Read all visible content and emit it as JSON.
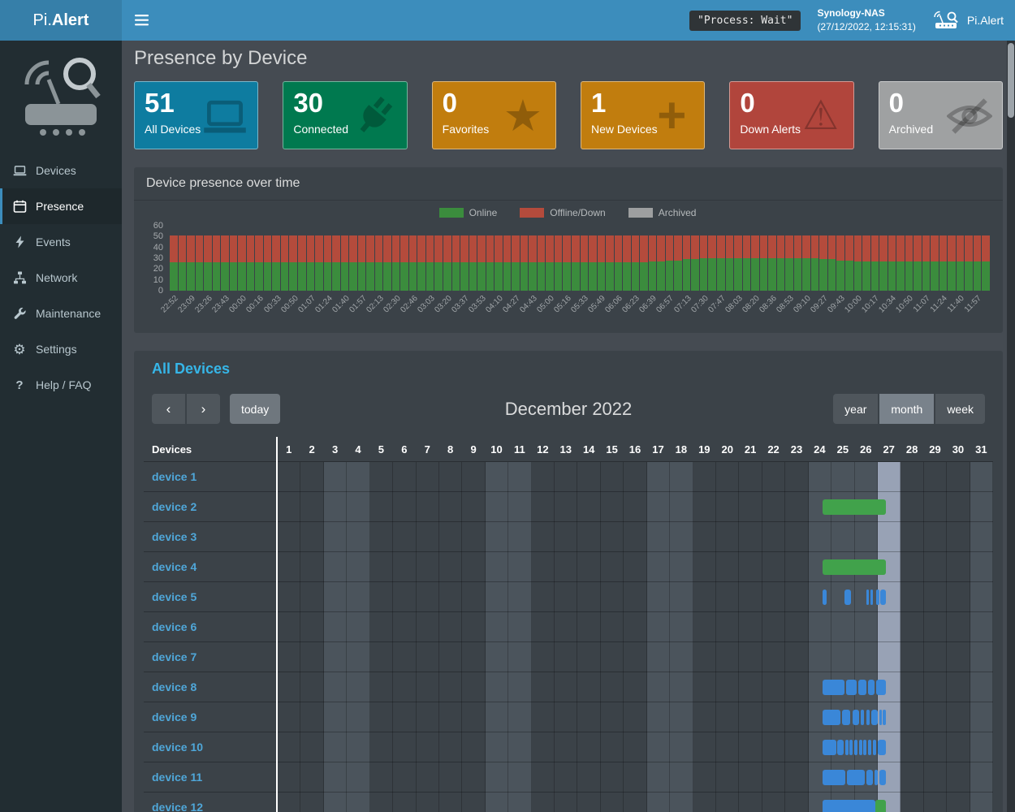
{
  "header": {
    "brand": {
      "light": "Pi.",
      "bold": "Alert"
    },
    "process_badge": "\"Process: Wait\"",
    "host": {
      "name": "Synology-NAS",
      "datetime": "(27/12/2022, 12:15:31)"
    },
    "user": {
      "label": "Pi.Alert",
      "icon": "router-icon"
    }
  },
  "sidebar": {
    "logo_icon": "pialert-logo-icon",
    "items": [
      {
        "label": "Devices",
        "icon": "laptop-icon",
        "active": false
      },
      {
        "label": "Presence",
        "icon": "calendar-icon",
        "active": true
      },
      {
        "label": "Events",
        "icon": "bolt-icon",
        "active": false
      },
      {
        "label": "Network",
        "icon": "network-icon",
        "active": false
      },
      {
        "label": "Maintenance",
        "icon": "wrench-icon",
        "active": false
      },
      {
        "label": "Settings",
        "icon": "gear-icon",
        "active": false
      },
      {
        "label": "Help / FAQ",
        "icon": "question-icon",
        "active": false
      }
    ]
  },
  "page": {
    "title": "Presence by Device"
  },
  "summary_cards": [
    {
      "value": "51",
      "label": "All Devices",
      "color": "#0e7ca0",
      "icon": "laptop-icon"
    },
    {
      "value": "30",
      "label": "Connected",
      "color": "#00794f",
      "icon": "plug-icon"
    },
    {
      "value": "0",
      "label": "Favorites",
      "color": "#c17d0e",
      "icon": "star-icon"
    },
    {
      "value": "1",
      "label": "New Devices",
      "color": "#c17d0e",
      "icon": "plus-icon"
    },
    {
      "value": "0",
      "label": "Down Alerts",
      "color": "#b1453c",
      "icon": "warning-icon"
    },
    {
      "value": "0",
      "label": "Archived",
      "color": "#9fa1a2",
      "icon": "eye-slash-icon"
    }
  ],
  "chart_panel": {
    "title": "Device presence over time"
  },
  "chart_data": {
    "type": "bar",
    "stacked": true,
    "title": "Device presence over time",
    "legend_position": "top",
    "grid": false,
    "ylim": [
      0,
      60
    ],
    "yticks": [
      0,
      10,
      20,
      30,
      40,
      50,
      60
    ],
    "x": [
      "22:52",
      "23:09",
      "23:26",
      "23:43",
      "00:00",
      "00:16",
      "00:33",
      "00:50",
      "01:07",
      "01:24",
      "01:40",
      "01:57",
      "02:13",
      "02:30",
      "02:46",
      "03:03",
      "03:20",
      "03:37",
      "03:53",
      "04:10",
      "04:27",
      "04:43",
      "05:00",
      "05:16",
      "05:33",
      "05:49",
      "06:06",
      "06:23",
      "06:39",
      "06:57",
      "07:13",
      "07:30",
      "07:47",
      "08:03",
      "08:20",
      "08:36",
      "08:53",
      "09:10",
      "09:27",
      "09:43",
      "10:00",
      "10:17",
      "10:34",
      "10:50",
      "11:07",
      "11:24",
      "11:40",
      "11:57"
    ],
    "bars_per_tick": 2,
    "series": [
      {
        "name": "Online",
        "color": "#3b8c3d",
        "values": [
          26,
          26,
          26,
          26,
          26,
          26,
          26,
          26,
          26,
          26,
          26,
          26,
          26,
          26,
          26,
          26,
          26,
          26,
          26,
          26,
          26,
          26,
          26,
          26,
          26,
          26,
          26,
          26,
          26,
          26,
          26,
          26,
          26,
          26,
          26,
          26,
          26,
          26,
          26,
          26,
          26,
          26,
          26,
          26,
          26,
          26,
          26,
          26,
          26,
          26,
          26,
          26,
          26,
          26,
          26,
          26,
          27,
          27,
          28,
          28,
          29,
          29,
          30,
          30,
          30,
          30,
          30,
          30,
          30,
          30,
          30,
          30,
          30,
          30,
          30,
          30,
          29,
          29,
          28,
          28,
          27,
          27,
          27,
          27,
          27,
          27,
          27,
          27,
          27,
          27,
          27,
          27,
          27,
          27,
          27,
          27
        ]
      },
      {
        "name": "Offline/Down",
        "color": "#b44b3c",
        "values": [
          25,
          25,
          25,
          25,
          25,
          25,
          25,
          25,
          25,
          25,
          25,
          25,
          25,
          25,
          25,
          25,
          25,
          25,
          25,
          25,
          25,
          25,
          25,
          25,
          25,
          25,
          25,
          25,
          25,
          25,
          25,
          25,
          25,
          25,
          25,
          25,
          25,
          25,
          25,
          25,
          25,
          25,
          25,
          25,
          25,
          25,
          25,
          25,
          25,
          25,
          25,
          25,
          25,
          25,
          25,
          25,
          24,
          24,
          23,
          23,
          22,
          22,
          21,
          21,
          21,
          21,
          21,
          21,
          21,
          21,
          21,
          21,
          21,
          21,
          21,
          21,
          22,
          22,
          23,
          23,
          24,
          24,
          24,
          24,
          24,
          24,
          24,
          24,
          24,
          24,
          24,
          24,
          24,
          24,
          24,
          24
        ]
      },
      {
        "name": "Archived",
        "color": "#9d9fa0",
        "values": [
          0,
          0,
          0,
          0,
          0,
          0,
          0,
          0,
          0,
          0,
          0,
          0,
          0,
          0,
          0,
          0,
          0,
          0,
          0,
          0,
          0,
          0,
          0,
          0,
          0,
          0,
          0,
          0,
          0,
          0,
          0,
          0,
          0,
          0,
          0,
          0,
          0,
          0,
          0,
          0,
          0,
          0,
          0,
          0,
          0,
          0,
          0,
          0,
          0,
          0,
          0,
          0,
          0,
          0,
          0,
          0,
          0,
          0,
          0,
          0,
          0,
          0,
          0,
          0,
          0,
          0,
          0,
          0,
          0,
          0,
          0,
          0,
          0,
          0,
          0,
          0,
          0,
          0,
          0,
          0,
          0,
          0,
          0,
          0,
          0,
          0,
          0,
          0,
          0,
          0,
          0,
          0,
          0,
          0,
          0,
          0
        ]
      }
    ]
  },
  "calendar": {
    "title": "All Devices",
    "toolbar": {
      "prev_label": "‹",
      "next_label": "›",
      "today_label": "today",
      "month_title": "December 2022",
      "views": [
        {
          "label": "year",
          "active": false
        },
        {
          "label": "month",
          "active": true
        },
        {
          "label": "week",
          "active": false
        }
      ]
    },
    "table": {
      "device_column_header": "Devices",
      "days_in_month": 31,
      "shaded_days": [
        3,
        4,
        10,
        11,
        17,
        18,
        24,
        25,
        26,
        31
      ],
      "today_day": 27,
      "bar_colors": {
        "blue": "#3a87d8",
        "green": "#41a24b"
      },
      "devices": [
        {
          "name": "device 1",
          "bars": []
        },
        {
          "name": "device 2",
          "bars": [
            {
              "start": 24.6,
              "end": 27.35,
              "color": "green"
            }
          ]
        },
        {
          "name": "device 3",
          "bars": []
        },
        {
          "name": "device 4",
          "bars": [
            {
              "start": 24.6,
              "end": 27.35,
              "color": "green"
            }
          ]
        },
        {
          "name": "device 5",
          "bars": [
            {
              "start": 24.62,
              "end": 24.8,
              "color": "blue"
            },
            {
              "start": 25.55,
              "end": 25.85,
              "color": "blue"
            },
            {
              "start": 26.52,
              "end": 26.62,
              "color": "blue"
            },
            {
              "start": 26.68,
              "end": 26.78,
              "color": "blue"
            },
            {
              "start": 26.92,
              "end": 27.08,
              "color": "blue"
            },
            {
              "start": 27.12,
              "end": 27.35,
              "color": "blue"
            }
          ]
        },
        {
          "name": "device 6",
          "bars": []
        },
        {
          "name": "device 7",
          "bars": []
        },
        {
          "name": "device 8",
          "bars": [
            {
              "start": 24.6,
              "end": 25.55,
              "color": "blue"
            },
            {
              "start": 25.62,
              "end": 26.08,
              "color": "blue"
            },
            {
              "start": 26.15,
              "end": 26.5,
              "color": "blue"
            },
            {
              "start": 26.57,
              "end": 26.85,
              "color": "blue"
            },
            {
              "start": 26.92,
              "end": 27.35,
              "color": "blue"
            }
          ]
        },
        {
          "name": "device 9",
          "bars": [
            {
              "start": 24.6,
              "end": 25.4,
              "color": "blue"
            },
            {
              "start": 25.47,
              "end": 25.82,
              "color": "blue"
            },
            {
              "start": 25.9,
              "end": 26.18,
              "color": "blue"
            },
            {
              "start": 26.25,
              "end": 26.42,
              "color": "blue"
            },
            {
              "start": 26.5,
              "end": 26.65,
              "color": "blue"
            },
            {
              "start": 26.72,
              "end": 27.0,
              "color": "blue"
            },
            {
              "start": 27.06,
              "end": 27.18,
              "color": "blue"
            },
            {
              "start": 27.23,
              "end": 27.35,
              "color": "blue"
            }
          ]
        },
        {
          "name": "device 10",
          "bars": [
            {
              "start": 24.6,
              "end": 25.2,
              "color": "blue"
            },
            {
              "start": 25.26,
              "end": 25.52,
              "color": "blue"
            },
            {
              "start": 25.58,
              "end": 25.72,
              "color": "blue"
            },
            {
              "start": 25.78,
              "end": 25.92,
              "color": "blue"
            },
            {
              "start": 25.98,
              "end": 26.12,
              "color": "blue"
            },
            {
              "start": 26.18,
              "end": 26.32,
              "color": "blue"
            },
            {
              "start": 26.38,
              "end": 26.52,
              "color": "blue"
            },
            {
              "start": 26.58,
              "end": 26.72,
              "color": "blue"
            },
            {
              "start": 26.78,
              "end": 26.95,
              "color": "blue"
            },
            {
              "start": 27.0,
              "end": 27.35,
              "color": "blue"
            }
          ]
        },
        {
          "name": "device 11",
          "bars": [
            {
              "start": 24.6,
              "end": 25.6,
              "color": "blue"
            },
            {
              "start": 25.66,
              "end": 26.45,
              "color": "blue"
            },
            {
              "start": 26.52,
              "end": 26.8,
              "color": "blue"
            },
            {
              "start": 26.86,
              "end": 27.02,
              "color": "blue"
            },
            {
              "start": 27.08,
              "end": 27.35,
              "color": "blue"
            }
          ]
        },
        {
          "name": "device 12",
          "bars": [
            {
              "start": 24.6,
              "end": 26.9,
              "color": "blue"
            },
            {
              "start": 26.9,
              "end": 27.35,
              "color": "green"
            }
          ]
        }
      ]
    }
  }
}
